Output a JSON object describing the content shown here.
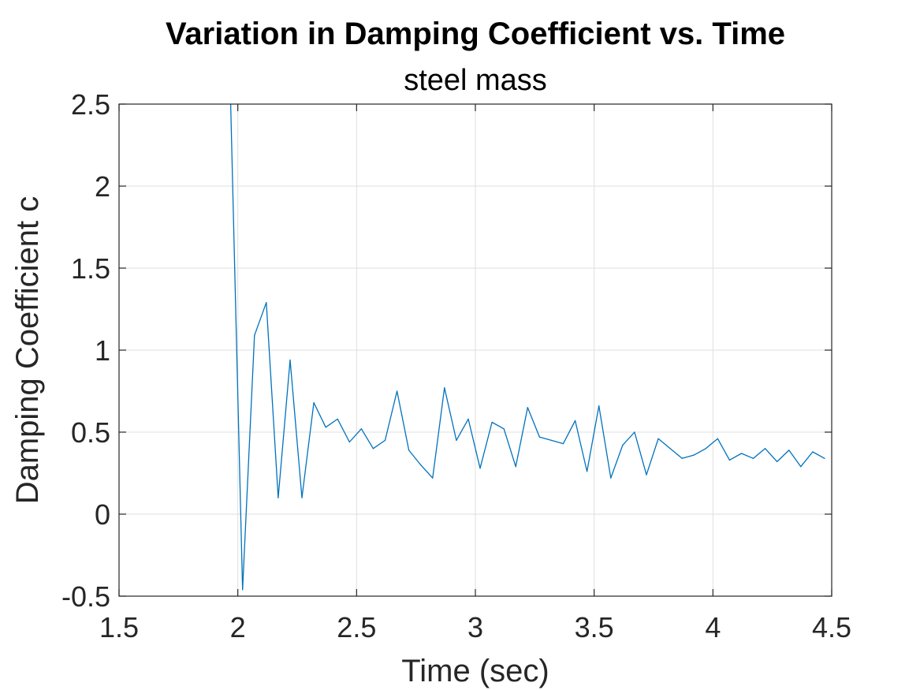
{
  "chart_data": {
    "type": "line",
    "title": "Variation in Damping Coefficient vs. Time",
    "subtitle": "steel mass",
    "xlabel": "Time (sec)",
    "ylabel": "Damping Coefficient c",
    "xlim": [
      1.5,
      4.5
    ],
    "ylim": [
      -0.5,
      2.5
    ],
    "xticks": [
      "1.5",
      "2",
      "2.5",
      "3",
      "3.5",
      "4",
      "4.5"
    ],
    "yticks": [
      "-0.5",
      "0",
      "0.5",
      "1",
      "1.5",
      "2",
      "2.5"
    ],
    "grid": true,
    "legend": "none",
    "series_color": "#0072BD",
    "series": [
      {
        "x": [
          1.97,
          2.02,
          2.07,
          2.12,
          2.17,
          2.22,
          2.27,
          2.32,
          2.37,
          2.42,
          2.47,
          2.52,
          2.57,
          2.62,
          2.67,
          2.72,
          2.77,
          2.82,
          2.87,
          2.92,
          2.97,
          3.02,
          3.07,
          3.12,
          3.17,
          3.22,
          3.27,
          3.32,
          3.37,
          3.42,
          3.47,
          3.52,
          3.57,
          3.62,
          3.67,
          3.72,
          3.77,
          3.82,
          3.87,
          3.92,
          3.97,
          4.02,
          4.07,
          4.12,
          4.17,
          4.22,
          4.27,
          4.32,
          4.37,
          4.42,
          4.47
        ],
        "values": [
          2.5,
          -0.46,
          1.09,
          1.29,
          0.1,
          0.94,
          0.1,
          0.68,
          0.53,
          0.58,
          0.44,
          0.52,
          0.4,
          0.45,
          0.75,
          0.39,
          0.3,
          0.22,
          0.77,
          0.45,
          0.58,
          0.28,
          0.56,
          0.52,
          0.29,
          0.65,
          0.47,
          0.45,
          0.43,
          0.57,
          0.26,
          0.66,
          0.22,
          0.42,
          0.5,
          0.24,
          0.46,
          0.4,
          0.34,
          0.36,
          0.4,
          0.46,
          0.33,
          0.37,
          0.34,
          0.4,
          0.32,
          0.39,
          0.29,
          0.38,
          0.34
        ]
      }
    ]
  }
}
